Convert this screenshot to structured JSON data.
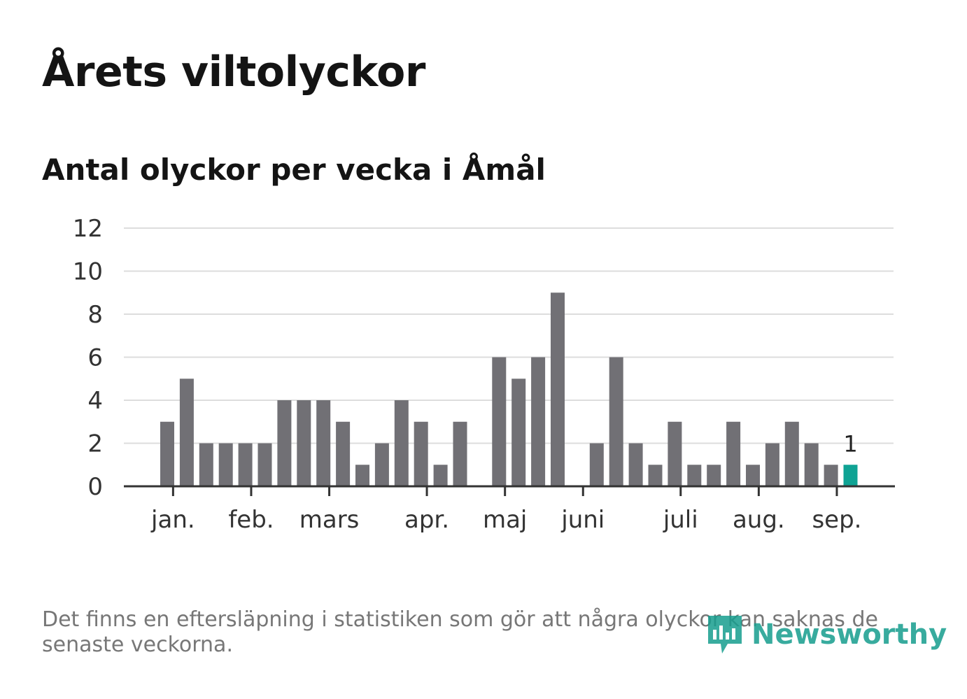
{
  "title": "Årets viltolyckor",
  "subtitle": "Antal olyckor per vecka i Åmål",
  "note": "Det finns en eftersläpning i statistiken som gör att några olyckor kan saknas de senaste veckorna.",
  "logo": {
    "text": "Newsworthy",
    "icon": "newsworthy-logo-icon",
    "color": "#169d8e"
  },
  "colors": {
    "bar": "#717075",
    "highlight": "#0fa394",
    "grid": "#dddddd",
    "axis": "#333333"
  },
  "chart_data": {
    "type": "bar",
    "title": "Antal olyckor per vecka i Åmål",
    "xlabel": "",
    "ylabel": "",
    "ylim": [
      0,
      12
    ],
    "yticks": [
      0,
      2,
      4,
      6,
      8,
      10,
      12
    ],
    "grid": true,
    "month_ticks": [
      {
        "label": "jan.",
        "week": 1.3
      },
      {
        "label": "feb.",
        "week": 5.3
      },
      {
        "label": "mars",
        "week": 9.3
      },
      {
        "label": "apr.",
        "week": 14.3
      },
      {
        "label": "maj",
        "week": 18.3
      },
      {
        "label": "juni",
        "week": 22.3
      },
      {
        "label": "juli",
        "week": 27.3
      },
      {
        "label": "aug.",
        "week": 31.3
      },
      {
        "label": "sep.",
        "week": 35.3
      }
    ],
    "weeks": [
      1,
      2,
      3,
      4,
      5,
      6,
      7,
      8,
      9,
      10,
      11,
      12,
      13,
      14,
      15,
      16,
      17,
      18,
      19,
      20,
      21,
      22,
      23,
      24,
      25,
      26,
      27,
      28,
      29,
      30,
      31,
      32,
      33,
      34,
      35,
      36
    ],
    "values": [
      3,
      5,
      2,
      2,
      2,
      2,
      4,
      4,
      4,
      3,
      1,
      2,
      4,
      3,
      1,
      3,
      0,
      6,
      5,
      6,
      9,
      0,
      2,
      6,
      2,
      1,
      3,
      1,
      1,
      3,
      1,
      2,
      3,
      2,
      1,
      1
    ],
    "highlight_last": true,
    "last_label": "1"
  }
}
